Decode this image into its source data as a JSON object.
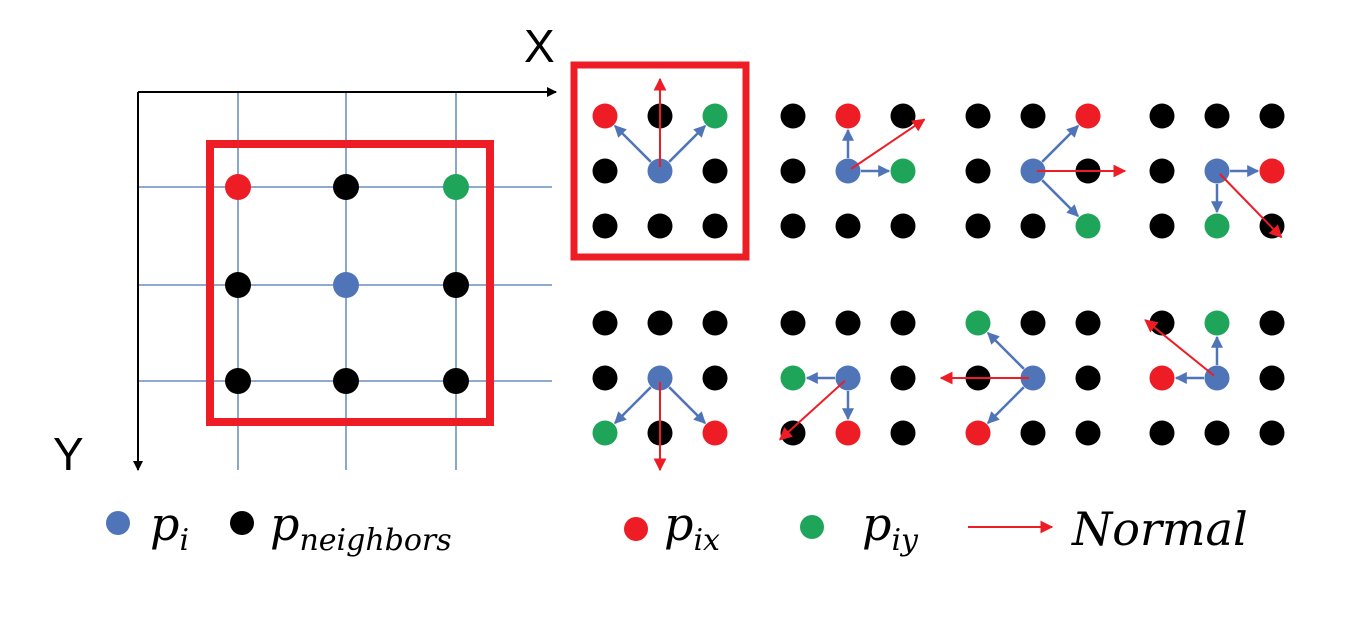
{
  "axes": {
    "x_label": "X",
    "y_label": "Y"
  },
  "colors": {
    "center": "#4f74b8",
    "neighbor": "#000000",
    "pix": "#ee1c25",
    "piy": "#1fa55a",
    "normal": "#ee1c25",
    "highlight_box": "#ee1c25",
    "grid": "#4a78b0"
  },
  "legend": {
    "pi": {
      "main": "p",
      "sub": "i"
    },
    "neighbors": {
      "main": "p",
      "sub": "neighbors"
    },
    "pix": {
      "main": "p",
      "sub": "ix"
    },
    "piy": {
      "main": "p",
      "sub": "iy"
    },
    "normal": "Normal"
  },
  "main_grid": {
    "rows": [
      [
        "pix",
        "neighbor",
        "piy"
      ],
      [
        "neighbor",
        "center",
        "neighbor"
      ],
      [
        "neighbor",
        "neighbor",
        "neighbor"
      ]
    ]
  },
  "configurations": [
    {
      "pix": [
        0,
        0
      ],
      "piy": [
        0,
        2
      ],
      "normal": "up",
      "highlighted": true
    },
    {
      "pix": [
        0,
        1
      ],
      "piy": [
        1,
        2
      ],
      "normal": "up-right",
      "highlighted": false
    },
    {
      "pix": [
        0,
        2
      ],
      "piy": [
        2,
        2
      ],
      "normal": "right",
      "highlighted": false
    },
    {
      "pix": [
        1,
        2
      ],
      "piy": [
        2,
        1
      ],
      "normal": "down-right",
      "highlighted": false
    },
    {
      "pix": [
        2,
        2
      ],
      "piy": [
        2,
        0
      ],
      "normal": "down",
      "highlighted": false
    },
    {
      "pix": [
        2,
        1
      ],
      "piy": [
        1,
        0
      ],
      "normal": "down-left",
      "highlighted": false
    },
    {
      "pix": [
        2,
        0
      ],
      "piy": [
        0,
        0
      ],
      "normal": "left",
      "highlighted": false
    },
    {
      "pix": [
        1,
        0
      ],
      "piy": [
        0,
        1
      ],
      "normal": "up-left",
      "highlighted": false
    }
  ]
}
